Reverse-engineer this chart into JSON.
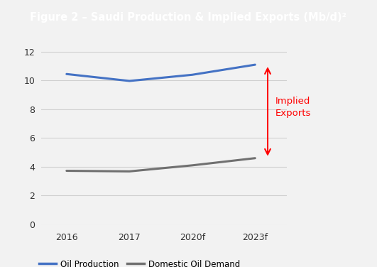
{
  "title": "Figure 2 – Saudi Production & Implied Exports (Mb/d)²",
  "title_bg_color": "#2d4a7a",
  "title_text_color": "#ffffff",
  "bg_color": "#f2f2f2",
  "plot_bg_color": "#f2f2f2",
  "x_labels": [
    "2016",
    "2017",
    "2020f",
    "2023f"
  ],
  "x_positions": [
    0,
    1,
    2,
    3
  ],
  "oil_production": [
    10.45,
    9.97,
    10.4,
    11.1
  ],
  "oil_production_color": "#4472c4",
  "domestic_demand": [
    3.72,
    3.68,
    4.1,
    4.6
  ],
  "domestic_demand_color": "#707070",
  "ylim": [
    0,
    13
  ],
  "yticks": [
    0,
    2,
    4,
    6,
    8,
    10,
    12
  ],
  "grid_color": "#d0d0d0",
  "arrow_color": "#ff0000",
  "annotation_text": "Implied\nExports",
  "annotation_color": "#ff0000",
  "legend_label_production": "Oil Production",
  "legend_label_demand": "Domestic Oil Demand",
  "line_width": 2.2
}
